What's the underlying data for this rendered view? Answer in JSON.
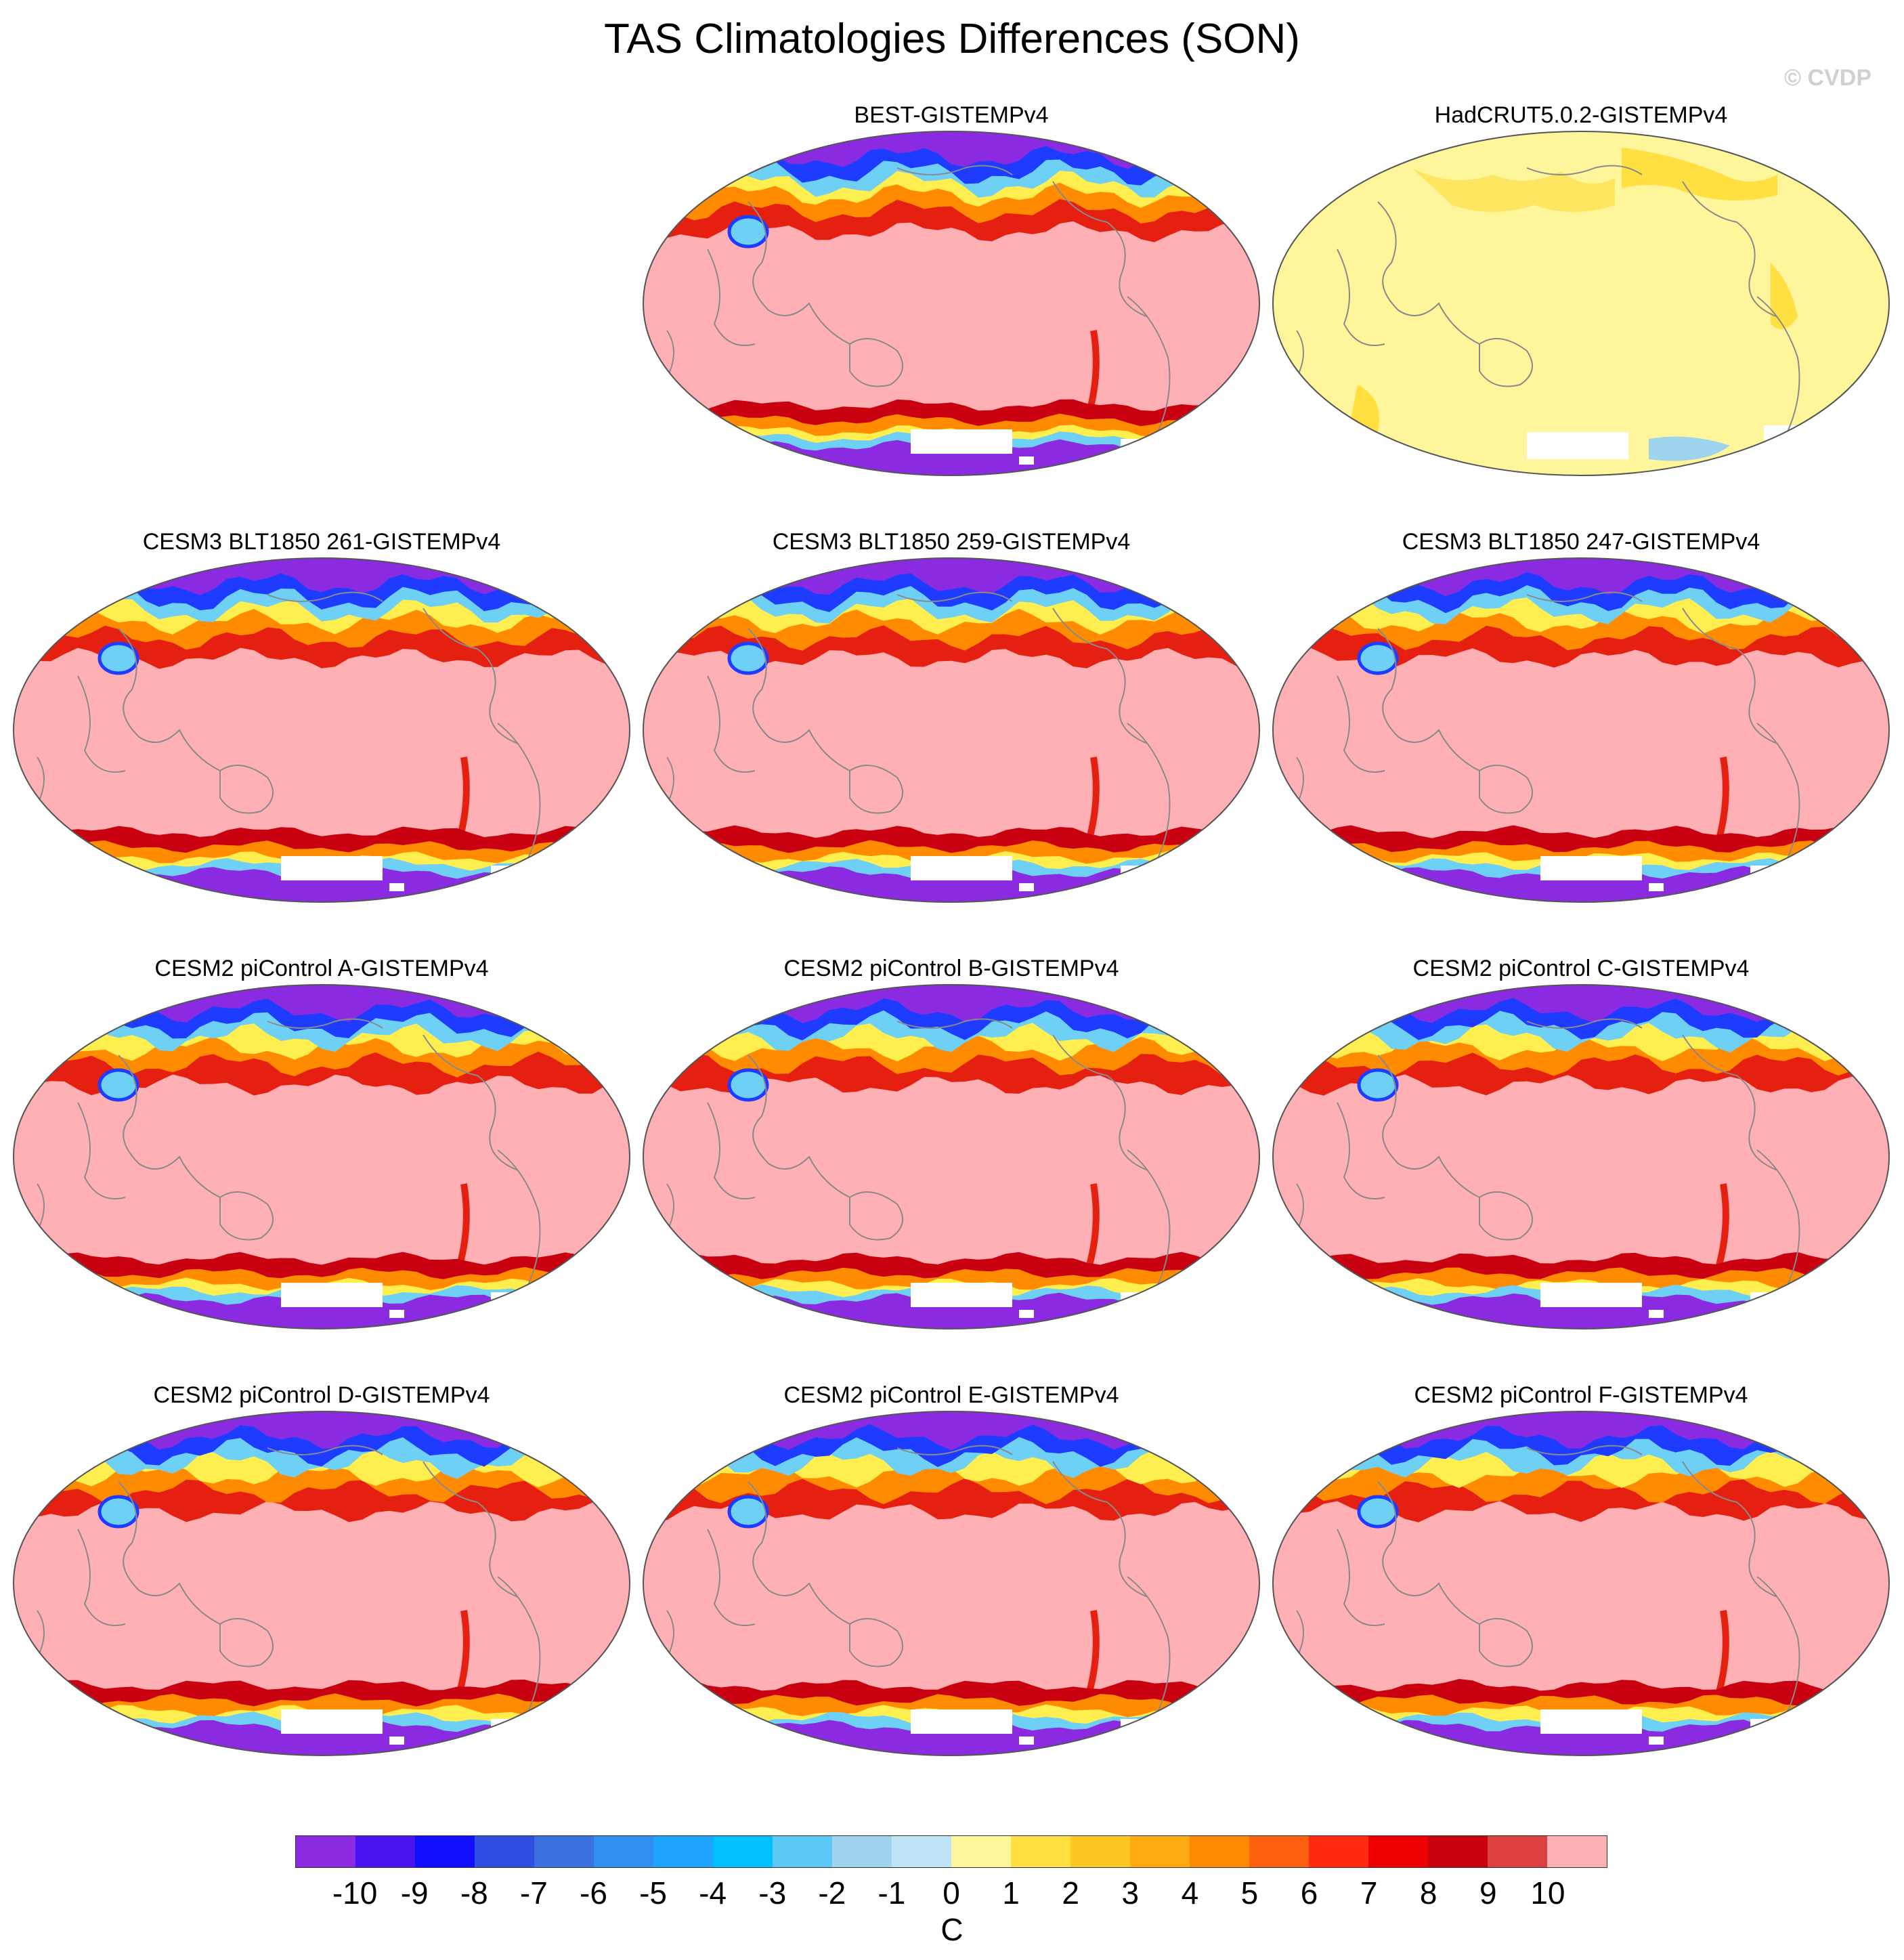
{
  "figure": {
    "title": "TAS Climatologies Differences (SON)",
    "copyright": "© CVDP"
  },
  "panels": [
    {
      "title": "BEST-GISTEMPv4",
      "style": "model"
    },
    {
      "title": "HadCRUT5.0.2-GISTEMPv4",
      "style": "obs"
    },
    {
      "title": "CESM3 BLT1850 261-GISTEMPv4",
      "style": "model"
    },
    {
      "title": "CESM3 BLT1850 259-GISTEMPv4",
      "style": "model"
    },
    {
      "title": "CESM3 BLT1850 247-GISTEMPv4",
      "style": "model"
    },
    {
      "title": "CESM2 piControl A-GISTEMPv4",
      "style": "model"
    },
    {
      "title": "CESM2 piControl B-GISTEMPv4",
      "style": "model"
    },
    {
      "title": "CESM2 piControl C-GISTEMPv4",
      "style": "model"
    },
    {
      "title": "CESM2 piControl D-GISTEMPv4",
      "style": "model"
    },
    {
      "title": "CESM2 piControl E-GISTEMPv4",
      "style": "model"
    },
    {
      "title": "CESM2 piControl F-GISTEMPv4",
      "style": "model"
    }
  ],
  "colorbar": {
    "units": "C",
    "labels": [
      "-10",
      "-9",
      "-8",
      "-7",
      "-6",
      "-5",
      "-4",
      "-3",
      "-2",
      "-1",
      "0",
      "1",
      "2",
      "3",
      "4",
      "5",
      "6",
      "7",
      "8",
      "9",
      "10"
    ],
    "colors": [
      "#8a2be2",
      "#4a14f0",
      "#1010ff",
      "#2f4fe0",
      "#3a70e0",
      "#2e8ff0",
      "#1ea4ff",
      "#00c0ff",
      "#5cc8f5",
      "#9fd4ee",
      "#bfe4f6",
      "#fff59a",
      "#ffe040",
      "#ffc820",
      "#ffaa10",
      "#ff8a00",
      "#ff6010",
      "#ff2a10",
      "#ee0000",
      "#c80010",
      "#dc4040",
      "#ffb0b4"
    ]
  },
  "palette": {
    "pink": "#ffb0b4",
    "purple": "#8a2be2",
    "blue": "#1e3cff",
    "cyan": "#6fd0f5",
    "red": "#e62010",
    "orange": "#ff8c00",
    "yellow": "#ffee50",
    "paleyellow": "#fff59a",
    "coast": "#8a8a8a"
  }
}
